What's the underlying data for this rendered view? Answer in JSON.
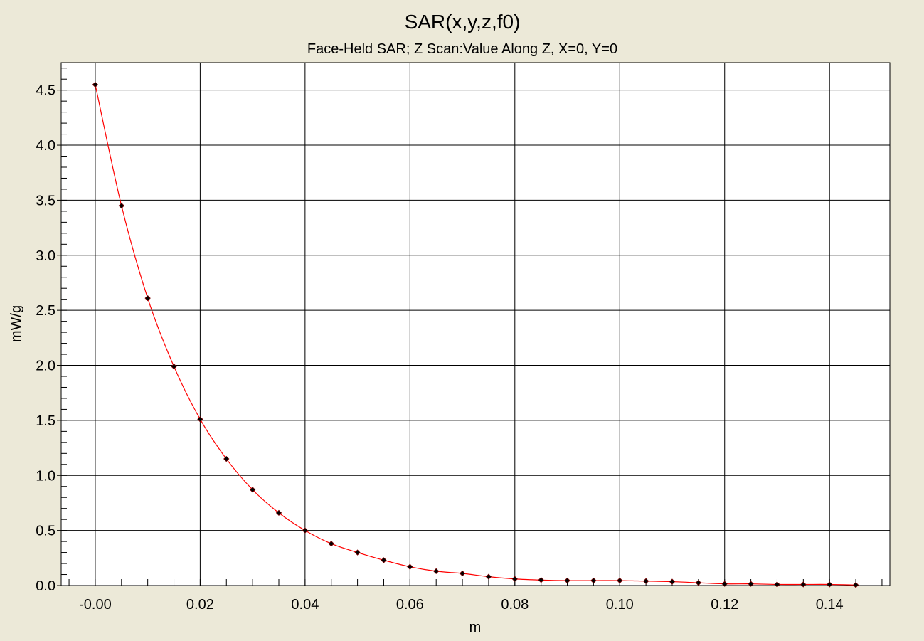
{
  "colors": {
    "background": "#ece9d8",
    "plot_area": "#ffffff",
    "line": "#ff0000",
    "marker": "#000000",
    "grid": "#000000"
  },
  "chart_data": {
    "type": "line",
    "title": "SAR(x,y,z,f0)",
    "subtitle": "Face-Held SAR; Z Scan:Value Along Z, X=0, Y=0",
    "xlabel": "m",
    "ylabel": "mW/g",
    "xlim": [
      -0.0065,
      0.1515
    ],
    "ylim": [
      0.0,
      4.75
    ],
    "x_ticks": [
      -0.0,
      0.02,
      0.04,
      0.06,
      0.08,
      0.1,
      0.12,
      0.14
    ],
    "x_tick_labels": [
      "-0.00",
      "0.02",
      "0.04",
      "0.06",
      "0.08",
      "0.10",
      "0.12",
      "0.14"
    ],
    "y_ticks": [
      0.0,
      0.5,
      1.0,
      1.5,
      2.0,
      2.5,
      3.0,
      3.5,
      4.0,
      4.5
    ],
    "y_tick_labels": [
      "0.0",
      "0.5",
      "1.0",
      "1.5",
      "2.0",
      "2.5",
      "3.0",
      "3.5",
      "4.0",
      "4.5"
    ],
    "grid": true,
    "series": [
      {
        "x": [
          0.0,
          0.005,
          0.01,
          0.015,
          0.02,
          0.025,
          0.03,
          0.035,
          0.04,
          0.045,
          0.05,
          0.055,
          0.06,
          0.065,
          0.07,
          0.075,
          0.08,
          0.085,
          0.09,
          0.095,
          0.1,
          0.105,
          0.11,
          0.115,
          0.12,
          0.125,
          0.13,
          0.135,
          0.14,
          0.145
        ],
        "values": [
          4.55,
          3.45,
          2.61,
          1.99,
          1.51,
          1.15,
          0.87,
          0.66,
          0.5,
          0.38,
          0.3,
          0.23,
          0.17,
          0.13,
          0.11,
          0.08,
          0.06,
          0.05,
          0.045,
          0.045,
          0.045,
          0.04,
          0.035,
          0.025,
          0.015,
          0.015,
          0.01,
          0.01,
          0.01,
          0.005
        ]
      }
    ]
  }
}
